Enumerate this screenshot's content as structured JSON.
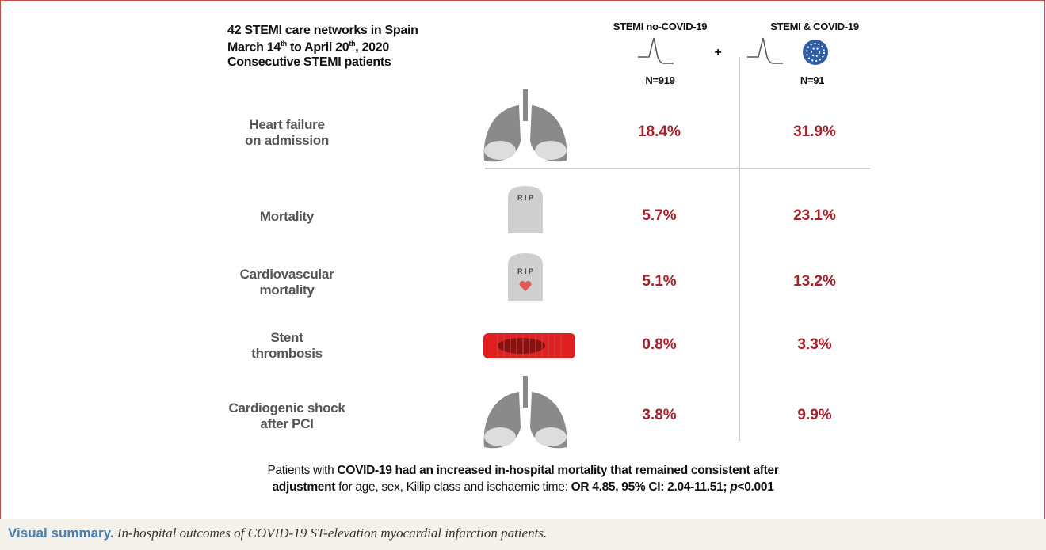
{
  "header": {
    "line1": "42 STEMI care networks in Spain",
    "line2": [
      "March 14",
      "th",
      " to April 20",
      "th",
      ", 2020"
    ],
    "line3": "Consecutive STEMI patients"
  },
  "columns": [
    {
      "title": "STEMI no-COVID-19",
      "n": "N=919"
    },
    {
      "title": "STEMI & COVID-19",
      "n": "N=91"
    }
  ],
  "icon_labels": {
    "plus": "+",
    "rip": "R I P"
  },
  "rows": [
    {
      "label": [
        "Heart failure",
        "on admission"
      ],
      "values": [
        "18.4%",
        "31.9%"
      ]
    },
    {
      "label": [
        "Mortality"
      ],
      "values": [
        "5.7%",
        "23.1%"
      ]
    },
    {
      "label": [
        "Cardiovascular",
        "mortality"
      ],
      "values": [
        "5.1%",
        "13.2%"
      ]
    },
    {
      "label": [
        "Stent",
        "thrombosis"
      ],
      "values": [
        "0.8%",
        "3.3%"
      ]
    },
    {
      "label": [
        "Cardiogenic shock",
        "after PCI"
      ],
      "values": [
        "3.8%",
        "9.9%"
      ]
    }
  ],
  "footer": [
    [
      {
        "text": "Patients with ",
        "style": "normal"
      },
      {
        "text": "COVID-19 had an increased in-hospital mortality that remained consistent after",
        "style": "bold"
      }
    ],
    [
      {
        "text": "adjustment",
        "style": "bold"
      },
      {
        "text": " for age, sex, Killip class and ischaemic time: ",
        "style": "normal"
      },
      {
        "text": "OR 4.85, 95% CI: 2.04-11.51; ",
        "style": "bold"
      },
      {
        "text": "p",
        "style": "bold-italic"
      },
      {
        "text": "<0.001",
        "style": "bold"
      }
    ]
  ],
  "caption": {
    "lead": "Visual summary.",
    "text": " In-hospital outcomes of COVID-19 ST-elevation myocardial infarction patients."
  }
}
